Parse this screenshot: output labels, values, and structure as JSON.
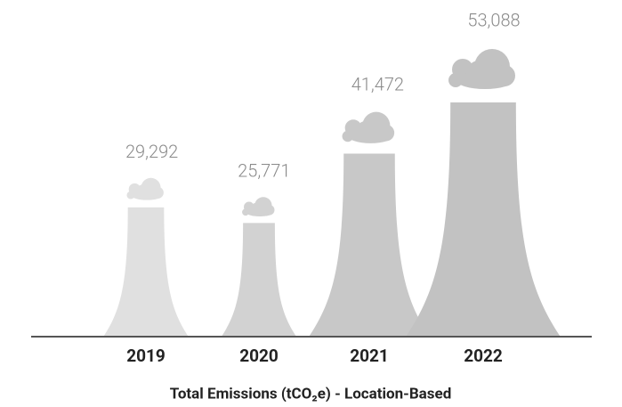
{
  "chart_data": {
    "type": "pictogram",
    "xlabel": "Total Emissions (tCO₂e) - Location-Based",
    "categories": [
      "2019",
      "2020",
      "2021",
      "2022"
    ],
    "values": [
      29292,
      25771,
      41472,
      53088
    ],
    "value_labels": [
      "29,292",
      "25,771",
      "41,472",
      "53,088"
    ],
    "colors": [
      "#e0e0e0",
      "#d2d2d2",
      "#c8c8c8",
      "#c2c2c2"
    ]
  }
}
